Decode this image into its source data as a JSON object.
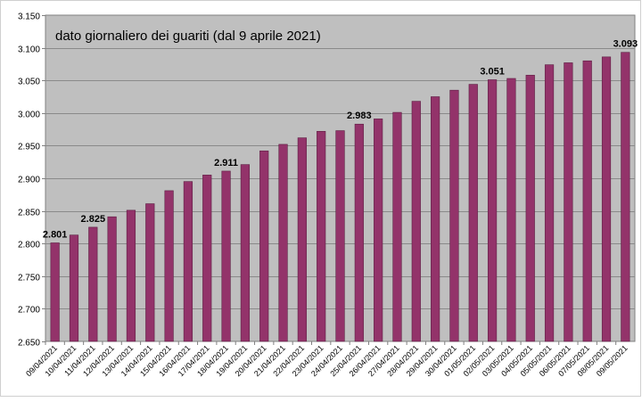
{
  "chart_data": {
    "type": "bar",
    "title": "dato giornaliero dei guariti (dal 9 aprile 2021)",
    "xlabel": "",
    "ylabel": "",
    "ylim": [
      2650,
      3150
    ],
    "yticks": [
      2650,
      2700,
      2750,
      2800,
      2850,
      2900,
      2950,
      3000,
      3050,
      3100,
      3150
    ],
    "ytick_labels": [
      "2.650",
      "2.700",
      "2.750",
      "2.800",
      "2.850",
      "2.900",
      "2.950",
      "3.000",
      "3.050",
      "3.100",
      "3.150"
    ],
    "grid": true,
    "legend": "none",
    "bar_color": "#93336a",
    "bar_edge_color": "#5e1f44",
    "plot_bg_color": "#bfbfbf",
    "categories": [
      "09/04/2021",
      "10/04/2021",
      "11/04/2021",
      "12/04/2021",
      "13/04/2021",
      "14/04/2021",
      "15/04/2021",
      "16/04/2021",
      "17/04/2021",
      "18/04/2021",
      "19/04/2021",
      "20/04/2021",
      "21/04/2021",
      "22/04/2021",
      "23/04/2021",
      "24/04/2021",
      "25/04/2021",
      "26/04/2021",
      "27/04/2021",
      "28/04/2021",
      "29/04/2021",
      "30/04/2021",
      "01/05/2021",
      "02/05/2021",
      "03/05/2021",
      "04/05/2021",
      "05/05/2021",
      "06/05/2021",
      "07/05/2021",
      "08/05/2021",
      "09/05/2021"
    ],
    "values": [
      2801,
      2813,
      2825,
      2841,
      2851,
      2861,
      2881,
      2895,
      2905,
      2911,
      2921,
      2942,
      2952,
      2962,
      2972,
      2973,
      2983,
      2991,
      3001,
      3018,
      3025,
      3035,
      3044,
      3051,
      3053,
      3058,
      3074,
      3077,
      3080,
      3086,
      3093
    ],
    "data_labels": [
      {
        "index": 0,
        "text": "2.801"
      },
      {
        "index": 2,
        "text": "2.825"
      },
      {
        "index": 9,
        "text": "2.911"
      },
      {
        "index": 16,
        "text": "2.983"
      },
      {
        "index": 23,
        "text": "3.051"
      },
      {
        "index": 30,
        "text": "3.093"
      }
    ]
  }
}
